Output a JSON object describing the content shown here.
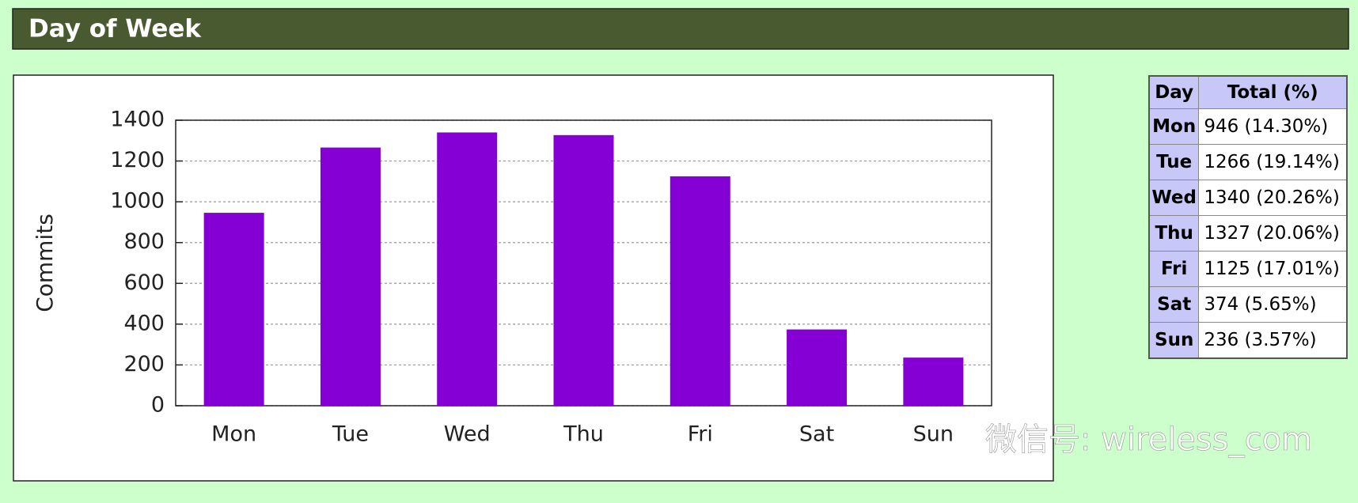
{
  "header": {
    "title": "Day of Week"
  },
  "chart_data": {
    "type": "bar",
    "categories": [
      "Mon",
      "Tue",
      "Wed",
      "Thu",
      "Fri",
      "Sat",
      "Sun"
    ],
    "values": [
      946,
      1266,
      1340,
      1327,
      1125,
      374,
      236
    ],
    "color": "#8400d4",
    "y_label": "Commits",
    "ylim": [
      0,
      1400
    ],
    "yticks": [
      0,
      200,
      400,
      600,
      800,
      1000,
      1200,
      1400
    ],
    "grid": true
  },
  "table": {
    "columns": [
      "Day",
      "Total (%)"
    ],
    "rows": [
      [
        "Mon",
        "946 (14.30%)"
      ],
      [
        "Tue",
        "1266 (19.14%)"
      ],
      [
        "Wed",
        "1340 (20.26%)"
      ],
      [
        "Thu",
        "1327 (20.06%)"
      ],
      [
        "Fri",
        "1125 (17.01%)"
      ],
      [
        "Sat",
        "374 (5.65%)"
      ],
      [
        "Sun",
        "236 (3.57%)"
      ]
    ]
  },
  "watermark": "微信号: wireless_com"
}
